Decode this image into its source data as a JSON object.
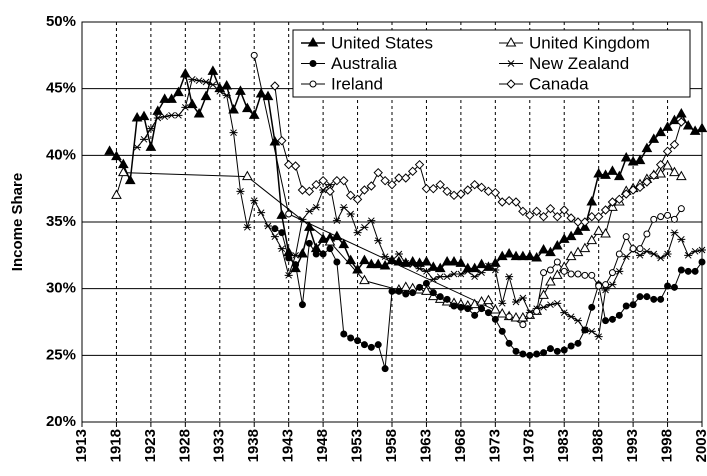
{
  "chart_data": {
    "type": "line",
    "y_label": "Income Share",
    "xlim": [
      1913,
      2003
    ],
    "ylim": [
      20,
      50
    ],
    "xticks": [
      1913,
      1918,
      1923,
      1928,
      1933,
      1938,
      1943,
      1948,
      1953,
      1958,
      1963,
      1968,
      1973,
      1978,
      1983,
      1988,
      1993,
      1998,
      2003
    ],
    "yticks": [
      {
        "value": 20,
        "label": "20%"
      },
      {
        "value": 25,
        "label": "25%"
      },
      {
        "value": 30,
        "label": "30%"
      },
      {
        "value": 35,
        "label": "35%"
      },
      {
        "value": 40,
        "label": "40%"
      },
      {
        "value": 45,
        "label": "45%"
      },
      {
        "value": 50,
        "label": "50%"
      }
    ],
    "grid": true,
    "legend_position": "upper right",
    "series": [
      {
        "name": "United States",
        "color": "#000000",
        "marker": "triangle-filled",
        "x": [
          1917,
          1918,
          1919,
          1920,
          1921,
          1922,
          1923,
          1924,
          1925,
          1926,
          1927,
          1928,
          1929,
          1930,
          1931,
          1932,
          1933,
          1934,
          1935,
          1936,
          1937,
          1938,
          1939,
          1940,
          1941,
          1942,
          1943,
          1944,
          1945,
          1946,
          1947,
          1948,
          1949,
          1950,
          1951,
          1952,
          1953,
          1954,
          1955,
          1956,
          1957,
          1958,
          1959,
          1960,
          1961,
          1962,
          1963,
          1964,
          1965,
          1966,
          1967,
          1968,
          1969,
          1970,
          1971,
          1972,
          1973,
          1974,
          1975,
          1976,
          1977,
          1978,
          1979,
          1980,
          1981,
          1982,
          1983,
          1984,
          1985,
          1986,
          1987,
          1988,
          1989,
          1990,
          1991,
          1992,
          1993,
          1994,
          1995,
          1996,
          1997,
          1998,
          1999,
          2000,
          2001,
          2002,
          2003
        ],
        "values": [
          40.3,
          39.9,
          39.3,
          38.1,
          42.8,
          42.9,
          40.6,
          43.3,
          44.2,
          44.2,
          44.7,
          46.1,
          43.8,
          43.1,
          44.4,
          46.3,
          45.0,
          45.2,
          43.4,
          44.8,
          43.5,
          43.0,
          44.6,
          44.4,
          41.0,
          35.5,
          32.7,
          31.5,
          32.6,
          34.6,
          33.0,
          33.7,
          33.8,
          33.9,
          33.3,
          32.1,
          31.4,
          32.1,
          31.8,
          31.8,
          31.7,
          32.1,
          32.0,
          31.9,
          32.0,
          31.9,
          32.0,
          31.6,
          31.5,
          32.0,
          32.0,
          31.9,
          31.5,
          31.5,
          31.8,
          31.6,
          31.9,
          32.4,
          32.6,
          32.4,
          32.4,
          32.4,
          32.3,
          32.9,
          32.7,
          33.2,
          33.7,
          33.9,
          34.3,
          34.6,
          36.5,
          38.6,
          38.5,
          38.8,
          38.4,
          39.8,
          39.5,
          39.6,
          40.5,
          41.2,
          41.7,
          42.1,
          42.6,
          43.1,
          42.2,
          41.8,
          42.0
        ]
      },
      {
        "name": "United Kingdom",
        "color": "#000000",
        "marker": "triangle-open",
        "x": [
          1918,
          1919,
          1937,
          1949,
          1954,
          1959,
          1960,
          1961,
          1962,
          1963,
          1964,
          1965,
          1966,
          1967,
          1968,
          1969,
          1970,
          1971,
          1972,
          1973,
          1974,
          1975,
          1976,
          1977,
          1978,
          1979,
          1980,
          1981,
          1982,
          1983,
          1984,
          1985,
          1986,
          1987,
          1988,
          1989,
          1990,
          1991,
          1992,
          1993,
          1994,
          1995,
          1996,
          1997,
          1998,
          1999,
          2000
        ],
        "values": [
          37.0,
          38.7,
          38.4,
          33.5,
          30.6,
          29.9,
          30.1,
          30.0,
          29.9,
          29.8,
          29.4,
          29.2,
          29.0,
          28.9,
          28.8,
          28.7,
          28.8,
          29.0,
          29.1,
          28.4,
          28.1,
          27.9,
          27.8,
          27.8,
          28.0,
          28.3,
          29.5,
          30.5,
          31.0,
          31.6,
          32.4,
          32.7,
          33.0,
          33.6,
          34.3,
          34.1,
          36.1,
          36.5,
          37.3,
          37.5,
          37.8,
          38.2,
          38.5,
          38.6,
          39.2,
          38.7,
          38.4
        ]
      },
      {
        "name": "Australia",
        "color": "#000000",
        "marker": "circle-filled",
        "x": [
          1941,
          1942,
          1943,
          1944,
          1945,
          1946,
          1947,
          1948,
          1949,
          1950,
          1951,
          1952,
          1953,
          1954,
          1955,
          1956,
          1957,
          1958,
          1959,
          1960,
          1961,
          1962,
          1963,
          1964,
          1965,
          1966,
          1967,
          1968,
          1969,
          1970,
          1971,
          1972,
          1973,
          1974,
          1975,
          1976,
          1977,
          1978,
          1979,
          1980,
          1981,
          1982,
          1983,
          1984,
          1985,
          1986,
          1987,
          1988,
          1989,
          1990,
          1991,
          1992,
          1993,
          1994,
          1995,
          1996,
          1997,
          1998,
          1999,
          2000,
          2001,
          2002,
          2003
        ],
        "values": [
          34.5,
          34.2,
          32.3,
          31.8,
          28.8,
          33.4,
          32.6,
          32.6,
          33.0,
          32.0,
          26.6,
          26.3,
          26.1,
          25.8,
          25.6,
          25.8,
          24.0,
          29.8,
          29.8,
          29.6,
          29.7,
          30.1,
          30.4,
          29.7,
          29.4,
          29.2,
          28.7,
          28.6,
          28.5,
          28.0,
          28.5,
          28.2,
          27.7,
          26.8,
          25.9,
          25.3,
          25.1,
          25.0,
          25.1,
          25.2,
          25.5,
          25.3,
          25.4,
          25.7,
          25.9,
          26.9,
          28.6,
          30.3,
          27.6,
          27.7,
          28.0,
          28.7,
          28.8,
          29.4,
          29.4,
          29.2,
          29.2,
          30.2,
          30.1,
          31.4,
          31.3,
          31.3,
          32.0
        ]
      },
      {
        "name": "New Zealand",
        "color": "#000000",
        "marker": "star",
        "x": [
          1921,
          1922,
          1923,
          1924,
          1925,
          1926,
          1927,
          1928,
          1929,
          1930,
          1931,
          1932,
          1933,
          1934,
          1935,
          1936,
          1937,
          1938,
          1939,
          1940,
          1941,
          1942,
          1943,
          1944,
          1945,
          1946,
          1947,
          1948,
          1949,
          1950,
          1951,
          1952,
          1953,
          1954,
          1955,
          1956,
          1957,
          1958,
          1959,
          1960,
          1961,
          1962,
          1963,
          1964,
          1965,
          1966,
          1967,
          1968,
          1969,
          1970,
          1971,
          1972,
          1973,
          1974,
          1975,
          1976,
          1977,
          1978,
          1979,
          1980,
          1981,
          1982,
          1983,
          1984,
          1985,
          1986,
          1987,
          1988,
          1989,
          1990,
          1991,
          1992,
          1993,
          1994,
          1995,
          1996,
          1997,
          1998,
          1999,
          2000,
          2001,
          2002,
          2003
        ],
        "values": [
          40.6,
          41.2,
          42.0,
          42.8,
          42.9,
          43.0,
          43.0,
          43.6,
          45.7,
          45.6,
          45.5,
          45.3,
          44.8,
          44.5,
          41.7,
          37.3,
          34.6,
          36.6,
          35.7,
          34.7,
          33.9,
          33.0,
          31.0,
          32.5,
          35.2,
          35.8,
          36.1,
          37.4,
          37.8,
          35.1,
          36.1,
          35.6,
          34.2,
          34.6,
          35.1,
          33.6,
          32.4,
          32.1,
          32.6,
          31.9,
          31.8,
          31.5,
          31.3,
          30.7,
          30.9,
          30.9,
          31.1,
          31.1,
          31.3,
          30.9,
          31.2,
          31.7,
          31.4,
          28.9,
          30.9,
          29.0,
          29.3,
          28.2,
          28.5,
          28.6,
          28.8,
          28.9,
          28.2,
          27.9,
          27.6,
          26.9,
          26.8,
          26.4,
          29.9,
          30.3,
          31.3,
          32.4,
          32.9,
          32.5,
          32.8,
          32.6,
          32.3,
          32.6,
          34.2,
          33.7,
          32.5,
          32.8,
          32.9
        ]
      },
      {
        "name": "Ireland",
        "color": "#000000",
        "marker": "circle-open",
        "x": [
          1938,
          1943,
          1975,
          1977,
          1978,
          1979,
          1980,
          1981,
          1982,
          1983,
          1984,
          1985,
          1986,
          1987,
          1988,
          1989,
          1990,
          1991,
          1992,
          1993,
          1994,
          1995,
          1996,
          1997,
          1998,
          1999,
          2000
        ],
        "values": [
          47.5,
          35.6,
          27.9,
          27.3,
          28.0,
          28.3,
          31.2,
          31.4,
          32.0,
          31.3,
          31.1,
          31.1,
          31.0,
          31.0,
          30.2,
          30.3,
          31.2,
          32.6,
          33.9,
          33.0,
          33.0,
          34.1,
          35.2,
          35.4,
          35.5,
          35.2,
          36.0
        ]
      },
      {
        "name": "Canada",
        "color": "#000000",
        "marker": "diamond-open",
        "x": [
          1941,
          1942,
          1943,
          1944,
          1945,
          1946,
          1947,
          1948,
          1949,
          1950,
          1951,
          1952,
          1953,
          1954,
          1955,
          1956,
          1957,
          1958,
          1959,
          1960,
          1961,
          1962,
          1963,
          1964,
          1965,
          1966,
          1967,
          1968,
          1969,
          1970,
          1971,
          1972,
          1973,
          1974,
          1975,
          1976,
          1977,
          1978,
          1979,
          1980,
          1981,
          1982,
          1983,
          1984,
          1985,
          1986,
          1987,
          1988,
          1989,
          1990,
          1991,
          1992,
          1993,
          1994,
          1995,
          1996,
          1997,
          1998,
          1999,
          2000
        ],
        "values": [
          45.2,
          41.1,
          39.3,
          39.2,
          37.4,
          37.3,
          37.8,
          38.1,
          37.3,
          38.1,
          38.1,
          37.0,
          36.7,
          37.4,
          37.7,
          38.7,
          38.1,
          37.8,
          38.3,
          38.3,
          38.8,
          39.3,
          37.5,
          37.5,
          37.8,
          37.3,
          37.0,
          37.1,
          37.4,
          37.8,
          37.6,
          37.3,
          37.2,
          36.5,
          36.6,
          36.5,
          35.8,
          35.5,
          35.8,
          35.4,
          36.0,
          35.4,
          35.9,
          35.3,
          35.0,
          35.0,
          35.4,
          35.4,
          35.9,
          36.5,
          36.7,
          37.1,
          37.4,
          37.6,
          38.0,
          38.5,
          39.3,
          40.3,
          40.8,
          42.5
        ]
      }
    ]
  }
}
